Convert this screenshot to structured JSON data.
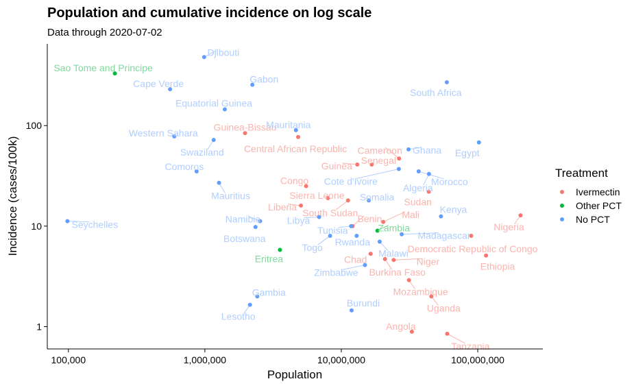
{
  "chart_data": {
    "type": "scatter",
    "title": "Population and cumulative incidence on log scale",
    "subtitle": "Data through 2020-07-02",
    "xlabel": "Population",
    "ylabel": "Incidence (cases/100k)",
    "xscale": "log",
    "yscale": "log",
    "xlim": [
      70000,
      300000000
    ],
    "ylim": [
      0.6,
      650
    ],
    "x_ticks": [
      100000,
      1000000,
      10000000,
      100000000
    ],
    "x_tick_labels": [
      "100,000",
      "1,000,000",
      "10,000,000",
      "100,000,000"
    ],
    "y_ticks": [
      1,
      10,
      100
    ],
    "y_tick_labels": [
      "1",
      "10",
      "100"
    ],
    "grid": false,
    "legend": {
      "title": "Treatment",
      "placement": "right",
      "entries": [
        {
          "name": "Ivermectin",
          "color": "#F8766D"
        },
        {
          "name": "Other PCT",
          "color": "#00BA38"
        },
        {
          "name": "No PCT",
          "color": "#619CFF"
        }
      ]
    },
    "series": [
      {
        "name": "Ivermectin",
        "color": "#F8766D",
        "label_color": "#FBB4AE",
        "points": [
          {
            "label": "Guinea-Bissau",
            "x": 1970000,
            "y": 84
          },
          {
            "label": "Central African Republic",
            "x": 4830000,
            "y": 77
          },
          {
            "label": "Cameroon",
            "x": 26500000,
            "y": 47
          },
          {
            "label": "Guinea",
            "x": 13100000,
            "y": 41
          },
          {
            "label": "Senegal",
            "x": 16700000,
            "y": 41
          },
          {
            "label": "Congo",
            "x": 5520000,
            "y": 25
          },
          {
            "label": "Sierra Leone",
            "x": 7980000,
            "y": 19
          },
          {
            "label": "Sudan",
            "x": 43800000,
            "y": 22
          },
          {
            "label": "Liberia",
            "x": 5060000,
            "y": 16
          },
          {
            "label": "South Sudan",
            "x": 11200000,
            "y": 18
          },
          {
            "label": "Benin",
            "x": 12100000,
            "y": 10
          },
          {
            "label": "Mali",
            "x": 20300000,
            "y": 11
          },
          {
            "label": "Nigeria",
            "x": 206000000,
            "y": 12.8
          },
          {
            "label": "Democratic Republic of Congo",
            "x": 89600000,
            "y": 8
          },
          {
            "label": "Chad",
            "x": 16400000,
            "y": 5.3
          },
          {
            "label": "Burkina Faso",
            "x": 20900000,
            "y": 4.7
          },
          {
            "label": "Niger",
            "x": 24200000,
            "y": 4.6
          },
          {
            "label": "Ethiopia",
            "x": 115000000,
            "y": 5.1
          },
          {
            "label": "Mozambique",
            "x": 31300000,
            "y": 2.9
          },
          {
            "label": "Uganda",
            "x": 45700000,
            "y": 2.0
          },
          {
            "label": "Angola",
            "x": 32900000,
            "y": 0.89
          },
          {
            "label": "Tanzania",
            "x": 59700000,
            "y": 0.85
          }
        ]
      },
      {
        "name": "Other PCT",
        "color": "#00BA38",
        "label_color": "#7FD99B",
        "points": [
          {
            "label": "Sao Tome and Principe",
            "x": 219000,
            "y": 330
          },
          {
            "label": "Zambia",
            "x": 18400000,
            "y": 9
          },
          {
            "label": "Eritrea",
            "x": 3550000,
            "y": 5.8
          }
        ]
      },
      {
        "name": "No PCT",
        "color": "#619CFF",
        "label_color": "#B0CEFF",
        "points": [
          {
            "label": "Djibouti",
            "x": 988000,
            "y": 480
          },
          {
            "label": "Gabon",
            "x": 2230000,
            "y": 255
          },
          {
            "label": "Cape Verde",
            "x": 556000,
            "y": 230
          },
          {
            "label": "South Africa",
            "x": 59300000,
            "y": 270
          },
          {
            "label": "Equatorial Guinea",
            "x": 1400000,
            "y": 145
          },
          {
            "label": "Mauritania",
            "x": 4650000,
            "y": 90
          },
          {
            "label": "Western Sahara",
            "x": 597000,
            "y": 78
          },
          {
            "label": "Swaziland",
            "x": 1160000,
            "y": 72
          },
          {
            "label": "Egypt",
            "x": 102000000,
            "y": 68
          },
          {
            "label": "Ghana",
            "x": 31100000,
            "y": 58
          },
          {
            "label": "Cote d'Ivoire",
            "x": 26400000,
            "y": 37
          },
          {
            "label": "Comoros",
            "x": 870000,
            "y": 35
          },
          {
            "label": "Mauritius",
            "x": 1270000,
            "y": 27
          },
          {
            "label": "Morocco",
            "x": 36900000,
            "y": 35
          },
          {
            "label": "Algeria",
            "x": 43900000,
            "y": 33
          },
          {
            "label": "Somalia",
            "x": 15900000,
            "y": 18
          },
          {
            "label": "Kenya",
            "x": 53800000,
            "y": 12.5
          },
          {
            "label": "Seychelles",
            "x": 98300,
            "y": 11.2
          },
          {
            "label": "Namibia",
            "x": 2540000,
            "y": 11.2
          },
          {
            "label": "Botswana",
            "x": 2350000,
            "y": 9.8
          },
          {
            "label": "Libya",
            "x": 6870000,
            "y": 12.3
          },
          {
            "label": "Tunisia",
            "x": 11800000,
            "y": 10
          },
          {
            "label": "Togo",
            "x": 8280000,
            "y": 8
          },
          {
            "label": "Rwanda",
            "x": 12950000,
            "y": 8
          },
          {
            "label": "Madagascar",
            "x": 27700000,
            "y": 8.3
          },
          {
            "label": "Malawi",
            "x": 19100000,
            "y": 7
          },
          {
            "label": "Zimbabwe",
            "x": 14900000,
            "y": 4.1
          },
          {
            "label": "Gambia",
            "x": 2420000,
            "y": 2.0
          },
          {
            "label": "Lesotho",
            "x": 2140000,
            "y": 1.65
          },
          {
            "label": "Burundi",
            "x": 11900000,
            "y": 1.45
          }
        ]
      }
    ]
  }
}
